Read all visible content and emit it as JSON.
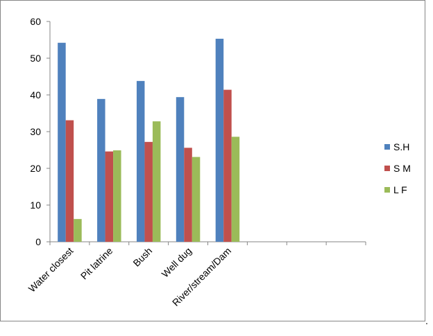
{
  "chart_data": {
    "type": "bar",
    "title": "",
    "xlabel": "",
    "ylabel": "",
    "ylim": [
      0,
      60
    ],
    "yticks": [
      "0",
      "10",
      "20",
      "30",
      "40",
      "50",
      "60"
    ],
    "grid": false,
    "legend_position": "right",
    "categories": [
      "Water closest",
      "Pit latrine",
      "Bush",
      "Well dug",
      "River/stream/Dam",
      "",
      "",
      ""
    ],
    "series": [
      {
        "name": "S.H",
        "color": "#4F81BD",
        "values": [
          54.2,
          38.9,
          43.8,
          39.4,
          55.3,
          null,
          null,
          null
        ]
      },
      {
        "name": "S M",
        "color": "#C0504D",
        "values": [
          33.1,
          24.6,
          27.2,
          25.6,
          41.4,
          null,
          null,
          null
        ]
      },
      {
        "name": "L F",
        "color": "#9BBB59",
        "values": [
          6.2,
          24.9,
          32.8,
          23.1,
          28.6,
          null,
          null,
          null
        ]
      }
    ]
  },
  "page": {
    "trailing_mark": "."
  }
}
